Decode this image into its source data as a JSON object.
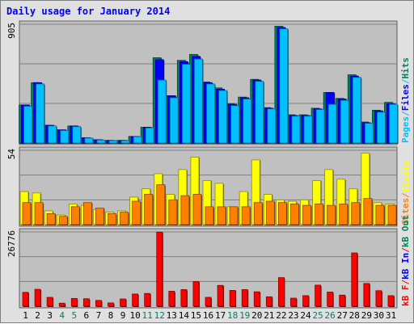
{
  "colors": {
    "background": "#e0e0e0",
    "plot_bg": "#c0c0c0",
    "title": "#0000ff",
    "hits": "#00805c",
    "files": "#0000ff",
    "pages": "#00c0ff",
    "visits": "#ffff00",
    "sites": "#ff8000",
    "kbytes": "#ff0000",
    "weekend_label": "#00805c"
  },
  "chart_data": {
    "type": "bar",
    "title": "Daily usage for January 2014",
    "categories": [
      "1",
      "2",
      "3",
      "4",
      "5",
      "6",
      "7",
      "8",
      "9",
      "10",
      "11",
      "12",
      "13",
      "14",
      "15",
      "16",
      "17",
      "18",
      "19",
      "20",
      "21",
      "22",
      "23",
      "24",
      "25",
      "26",
      "27",
      "28",
      "29",
      "30",
      "31"
    ],
    "weekend_days": [
      "4",
      "5",
      "11",
      "12",
      "18",
      "19",
      "25",
      "26"
    ],
    "panels": [
      {
        "id": "requests",
        "ymax_label": "905",
        "ylim": [
          0,
          905
        ],
        "right_labels": [
          {
            "text": "Pages",
            "color_key": "pages"
          },
          {
            "text": "/",
            "color_key": "pages"
          },
          {
            "text": "Files",
            "color_key": "files"
          },
          {
            "text": "/",
            "color_key": "pages"
          },
          {
            "text": "Hits",
            "color_key": "hits"
          }
        ],
        "series": [
          {
            "name": "Hits",
            "color_key": "hits",
            "values": [
              290,
              460,
              135,
              100,
              130,
              40,
              25,
              20,
              20,
              50,
              120,
              650,
              360,
              630,
              675,
              465,
              420,
              300,
              350,
              485,
              270,
              890,
              215,
              215,
              265,
              385,
              340,
              520,
              160,
              250,
              310
            ]
          },
          {
            "name": "Files",
            "color_key": "files",
            "values": [
              290,
              460,
              135,
              100,
              130,
              40,
              25,
              20,
              20,
              50,
              120,
              635,
              360,
              620,
              660,
              460,
              410,
              295,
              345,
              480,
              265,
              880,
              210,
              210,
              260,
              385,
              335,
              510,
              155,
              245,
              300
            ]
          },
          {
            "name": "Pages",
            "color_key": "pages",
            "values": [
              280,
              450,
              130,
              95,
              125,
              38,
              22,
              18,
              18,
              48,
              115,
              480,
              345,
              600,
              640,
              450,
              400,
              285,
              335,
              470,
              260,
              870,
              205,
              205,
              255,
              295,
              325,
              500,
              150,
              235,
              295
            ]
          }
        ]
      },
      {
        "id": "visitors",
        "ymax_label": "54",
        "ylim": [
          0,
          54
        ],
        "right_labels": [
          {
            "text": "Sites",
            "color_key": "sites"
          },
          {
            "text": "/",
            "color_key": "sites"
          },
          {
            "text": "Visits",
            "color_key": "visits"
          }
        ],
        "series": [
          {
            "name": "Visits",
            "color_key": "visits",
            "values": [
              24,
              23,
              10,
              7,
              15,
              14,
              11,
              9,
              10,
              20,
              26,
              37,
              22,
              40,
              49,
              32,
              30,
              13,
              24,
              47,
              22,
              18,
              17,
              18,
              32,
              40,
              33,
              26,
              52,
              16,
              15
            ]
          },
          {
            "name": "Sites",
            "color_key": "sites",
            "values": [
              16,
              16,
              8,
              6,
              13,
              16,
              12,
              8,
              9,
              17,
              22,
              29,
              18,
              21,
              22,
              13,
              13,
              13,
              13,
              16,
              17,
              16,
              15,
              14,
              15,
              14,
              15,
              16,
              19,
              14,
              14
            ]
          }
        ]
      },
      {
        "id": "kbytes",
        "ymax_label": "26776",
        "ylim": [
          0,
          26776
        ],
        "right_labels": [
          {
            "text": "kB F",
            "color_key": "kbytes"
          },
          {
            "text": "/",
            "color_key": "kbytes"
          },
          {
            "text": "kB In",
            "color_key": "files"
          },
          {
            "text": "/",
            "color_key": "kbytes"
          },
          {
            "text": "kB Out",
            "color_key": "hits"
          }
        ],
        "series": [
          {
            "name": "kB F",
            "color_key": "kbytes",
            "values": [
              5000,
              6100,
              3200,
              1100,
              2800,
              2700,
              2100,
              1200,
              2600,
              4400,
              4600,
              26700,
              5400,
              6000,
              8900,
              3200,
              7500,
              5700,
              6000,
              5200,
              3400,
              10300,
              2900,
              3800,
              7600,
              5100,
              4000,
              19200,
              8200,
              5600,
              3800
            ]
          }
        ]
      }
    ]
  }
}
